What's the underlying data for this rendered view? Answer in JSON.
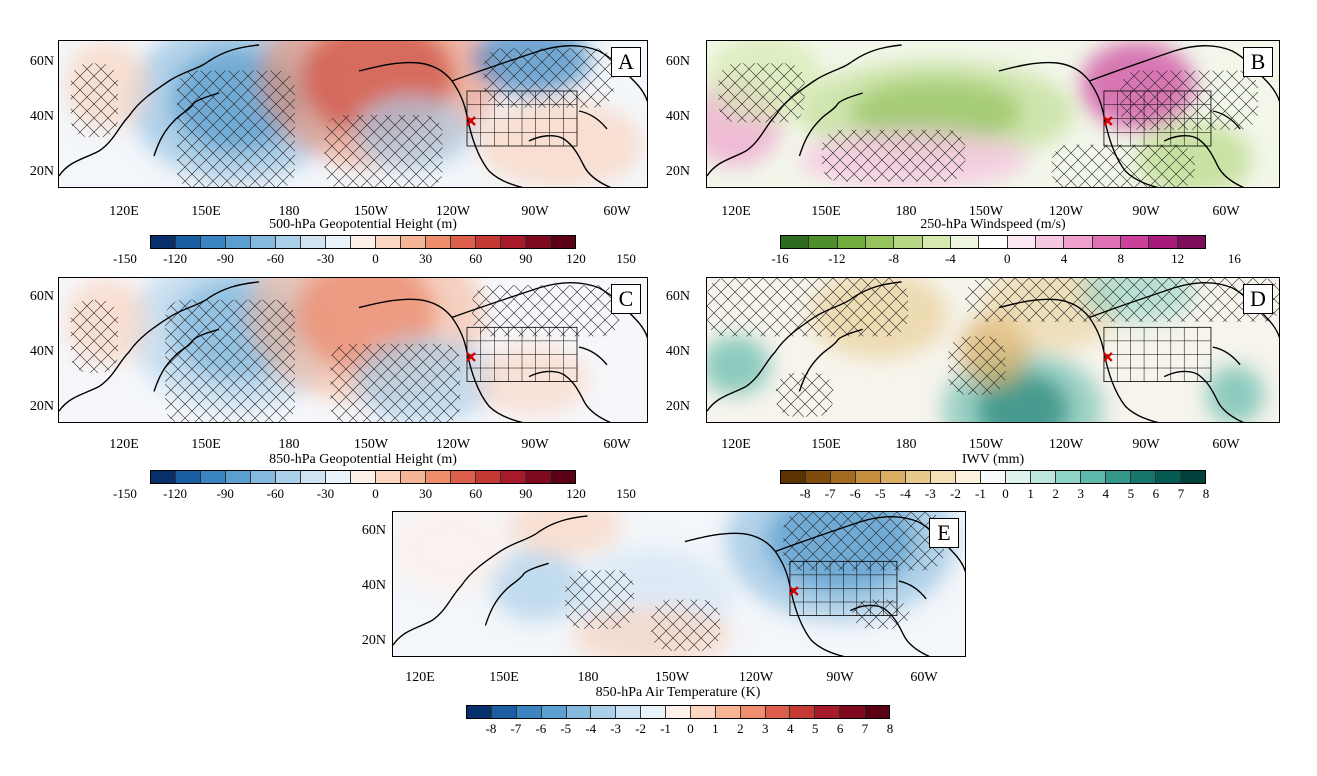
{
  "panels": [
    {
      "id": "A",
      "letter": "A",
      "title": "500-hPa Geopotential Height (m)",
      "lat_labels": [
        "60N",
        "40N",
        "20N"
      ],
      "lon_labels": [
        "120E",
        "150E",
        "180",
        "150W",
        "120W",
        "90W",
        "60W"
      ],
      "colorbar": {
        "palette": "blue-red",
        "tick_labels": [
          "-150",
          "-120",
          "-90",
          "-60",
          "-30",
          "0",
          "30",
          "60",
          "90",
          "120",
          "150"
        ]
      }
    },
    {
      "id": "B",
      "letter": "B",
      "title": "250-hPa Windspeed (m/s)",
      "lat_labels": [
        "60N",
        "40N",
        "20N"
      ],
      "lon_labels": [
        "120E",
        "150E",
        "180",
        "150W",
        "120W",
        "90W",
        "60W"
      ],
      "colorbar": {
        "palette": "green-magenta",
        "tick_labels": [
          "-16",
          "-12",
          "-8",
          "-4",
          "0",
          "4",
          "8",
          "12",
          "16"
        ]
      }
    },
    {
      "id": "C",
      "letter": "C",
      "title": "850-hPa Geopotential Height (m)",
      "lat_labels": [
        "60N",
        "40N",
        "20N"
      ],
      "lon_labels": [
        "120E",
        "150E",
        "180",
        "150W",
        "120W",
        "90W",
        "60W"
      ],
      "colorbar": {
        "palette": "blue-red",
        "tick_labels": [
          "-150",
          "-120",
          "-90",
          "-60",
          "-30",
          "0",
          "30",
          "60",
          "90",
          "120",
          "150"
        ]
      }
    },
    {
      "id": "D",
      "letter": "D",
      "title": "IWV (mm)",
      "lat_labels": [
        "60N",
        "40N",
        "20N"
      ],
      "lon_labels": [
        "120E",
        "150E",
        "180",
        "150W",
        "120W",
        "90W",
        "60W"
      ],
      "colorbar": {
        "palette": "brown-teal",
        "tick_labels": [
          "-8",
          "-7",
          "-6",
          "-5",
          "-4",
          "-3",
          "-2",
          "-1",
          "0",
          "1",
          "2",
          "3",
          "4",
          "5",
          "6",
          "7",
          "8"
        ]
      }
    },
    {
      "id": "E",
      "letter": "E",
      "title": "850-hPa Air Temperature (K)",
      "lat_labels": [
        "60N",
        "40N",
        "20N"
      ],
      "lon_labels": [
        "120E",
        "150E",
        "180",
        "150W",
        "120W",
        "90W",
        "60W"
      ],
      "colorbar": {
        "palette": "blue-red",
        "tick_labels": [
          "-8",
          "-7",
          "-6",
          "-5",
          "-4",
          "-3",
          "-2",
          "-1",
          "0",
          "1",
          "2",
          "3",
          "4",
          "5",
          "6",
          "7",
          "8"
        ]
      }
    }
  ],
  "palettes": {
    "blue-red": [
      "#08306b",
      "#1a5fa3",
      "#3a85c1",
      "#5a9fd0",
      "#86b9de",
      "#acd0ea",
      "#cfe3f3",
      "#eaf3fa",
      "#fdf0e8",
      "#fbd6c2",
      "#f6b597",
      "#ee8e6c",
      "#dd5e4a",
      "#c53a35",
      "#a8192a",
      "#7f0a1f",
      "#5c0016"
    ],
    "green-magenta": [
      "#2f6b1f",
      "#4e8f2c",
      "#70ad3e",
      "#95c45f",
      "#b8d885",
      "#d6e9b0",
      "#eef6df",
      "#ffffff",
      "#fbe6f2",
      "#f6c7e1",
      "#eea1cc",
      "#e070b4",
      "#cc3f9b",
      "#a81b7a",
      "#7c0e5c"
    ],
    "brown-teal": [
      "#5a3300",
      "#7e4d0c",
      "#a36b1f",
      "#c48e3c",
      "#d9ad62",
      "#e8c98c",
      "#f3e0b7",
      "#fbf2de",
      "#f7fbfa",
      "#dff2ee",
      "#bde6de",
      "#8fd3c6",
      "#5fb9aa",
      "#33978a",
      "#15766b",
      "#055a51",
      "#00423b"
    ]
  },
  "marker": "red-x-marker",
  "hatch": "cross-hatch-significance"
}
